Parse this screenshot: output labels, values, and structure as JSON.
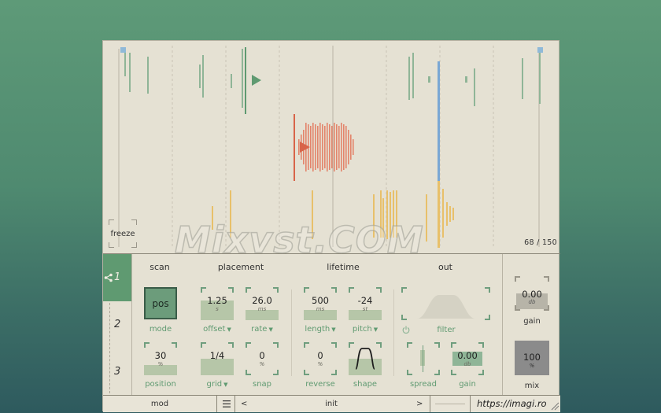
{
  "display": {
    "freeze_label": "freeze",
    "counter": "68 / 150"
  },
  "slots": [
    "1",
    "2",
    "3"
  ],
  "sections": {
    "scan": "scan",
    "placement": "placement",
    "lifetime": "lifetime",
    "out": "out"
  },
  "scan": {
    "mode_value": "pos",
    "mode_label": "mode",
    "position_value": "30",
    "position_unit": "%",
    "position_label": "position",
    "position_fill": 0.3
  },
  "placement": {
    "offset_value": "1.25",
    "offset_unit": "s",
    "offset_label": "offset",
    "offset_fill": 0.6,
    "rate_value": "26.0",
    "rate_unit": "ms",
    "rate_label": "rate",
    "rate_fill": 0.3,
    "grid_value": "1/4",
    "grid_label": "grid",
    "grid_fill": 0.5,
    "snap_value": "0",
    "snap_unit": "%",
    "snap_label": "snap",
    "snap_fill": 0.0
  },
  "lifetime": {
    "length_value": "500",
    "length_unit": "ms",
    "length_label": "length",
    "length_fill": 0.3,
    "pitch_value": "-24",
    "pitch_unit": "st",
    "pitch_label": "pitch",
    "pitch_fill": 0.3,
    "reverse_value": "0",
    "reverse_unit": "%",
    "reverse_label": "reverse",
    "reverse_fill": 0.0,
    "shape_label": "shape"
  },
  "out": {
    "filter_label": "filter",
    "spread_label": "spread",
    "gain_value": "0.00",
    "gain_unit": "db",
    "gain_label": "gain"
  },
  "master": {
    "gain_value": "0.00",
    "gain_unit": "db",
    "gain_label": "gain",
    "mix_value": "100",
    "mix_unit": "%",
    "mix_label": "mix"
  },
  "footer": {
    "mod": "mod",
    "prev": "<",
    "preset": "init",
    "next": ">",
    "url": "https://imagi.ro"
  },
  "watermark": "Mixvst.COM",
  "colors": {
    "accent": "#5f9a71",
    "grain_green": "#8fb597",
    "grain_red": "#e07a62",
    "grain_yellow": "#e8c06a",
    "playhead": "#7aa7d4",
    "background": "#e5e1d3"
  }
}
